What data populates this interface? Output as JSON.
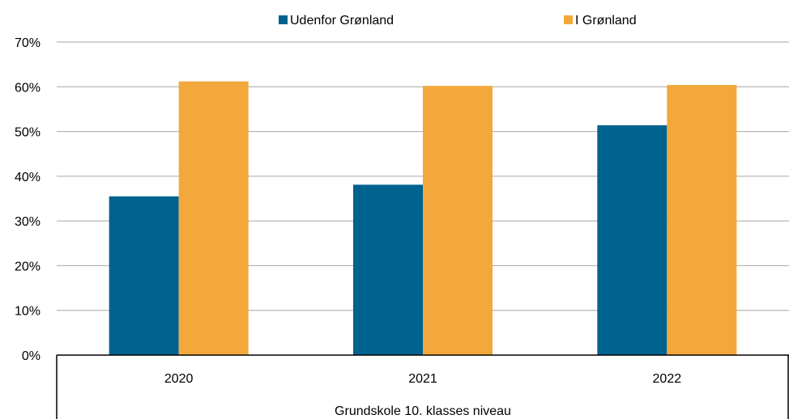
{
  "chart_data": {
    "type": "bar",
    "categories": [
      "2020",
      "2021",
      "2022"
    ],
    "group_label": "Grundskole 10. klasses niveau",
    "series": [
      {
        "name": "Udenfor Grønland",
        "color": "#00628f",
        "values": [
          0.355,
          0.381,
          0.514
        ]
      },
      {
        "name": "I Grønland",
        "color": "#f3a83b",
        "values": [
          0.612,
          0.602,
          0.604
        ]
      }
    ],
    "ylim": [
      0,
      0.7
    ],
    "y_ticks": [
      "0%",
      "10%",
      "20%",
      "30%",
      "40%",
      "50%",
      "60%",
      "70%"
    ],
    "y_tick_values": [
      0,
      0.1,
      0.2,
      0.3,
      0.4,
      0.5,
      0.6,
      0.7
    ],
    "grid": true,
    "legend_position": "top-center"
  }
}
